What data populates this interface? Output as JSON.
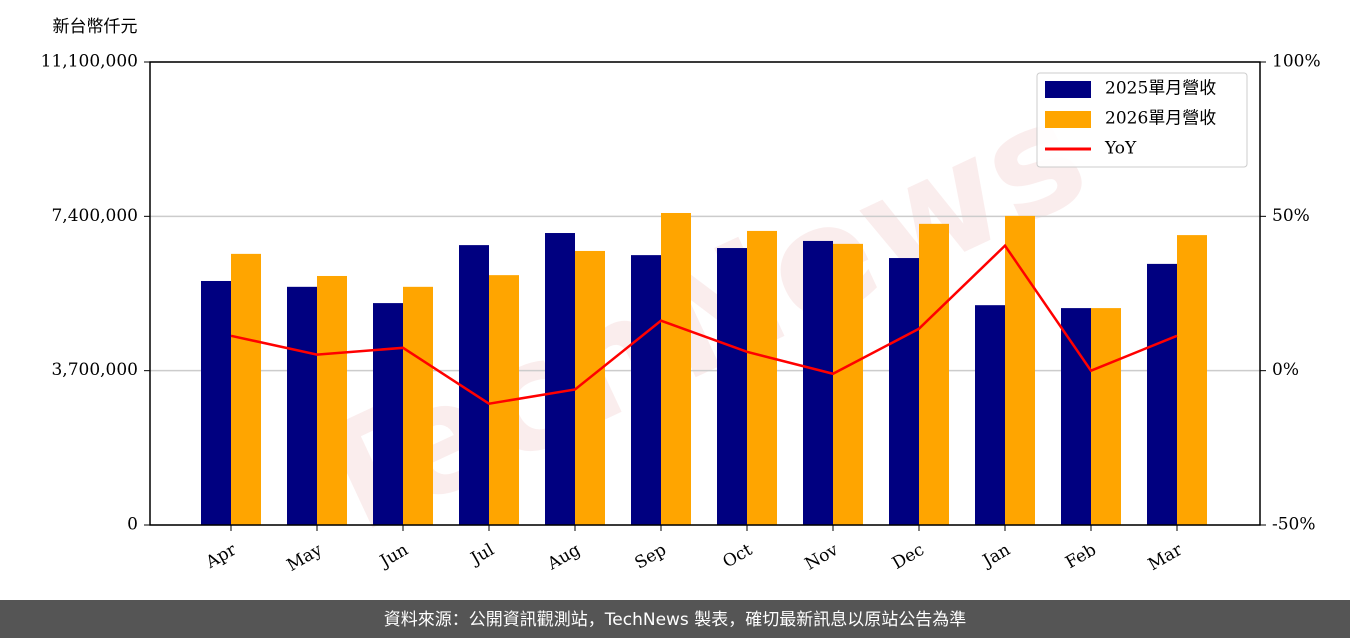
{
  "chart_data": {
    "type": "bar_line",
    "y_label": "新台幣仟元",
    "watermark": "TechNews",
    "source": "資料來源：公開資訊觀測站，TechNews 製表，確切最新訊息以原站公告為準",
    "categories": [
      "Apr",
      "May",
      "Jun",
      "Jul",
      "Aug",
      "Sep",
      "Oct",
      "Nov",
      "Dec",
      "Jan",
      "Feb",
      "Mar"
    ],
    "series": [
      {
        "name": "2025單月營收",
        "color": "#000080",
        "type": "bar",
        "axis": "y",
        "values": [
          5850000,
          5710000,
          5320000,
          6710000,
          7000000,
          6470000,
          6640000,
          6810000,
          6400000,
          5270000,
          5200000,
          6260000
        ]
      },
      {
        "name": "2026單月營收",
        "color": "#ffa500",
        "type": "bar",
        "axis": "y",
        "values": [
          6500000,
          5970000,
          5710000,
          5990000,
          6570000,
          7480000,
          7050000,
          6740000,
          7220000,
          7410000,
          5200000,
          6950000
        ]
      },
      {
        "name": "YoY",
        "color": "#ff0000",
        "type": "line",
        "axis": "y2",
        "values": [
          11.3,
          5.2,
          7.4,
          -10.7,
          -6.1,
          16.2,
          6.1,
          -1.0,
          13.6,
          40.5,
          0.0,
          11.3
        ]
      }
    ],
    "ylim": [
      0,
      11100000
    ],
    "yticks": [
      {
        "value": 0,
        "label": "0"
      },
      {
        "value": 3700000,
        "label": "3,700,000"
      },
      {
        "value": 7400000,
        "label": "7,400,000"
      },
      {
        "value": 11100000,
        "label": "11,100,000"
      }
    ],
    "y2lim": [
      -50,
      100
    ],
    "y2ticks": [
      {
        "value": -50,
        "label": "-50%"
      },
      {
        "value": 0,
        "label": "0%"
      },
      {
        "value": 50,
        "label": "50%"
      },
      {
        "value": 100,
        "label": "100%"
      }
    ],
    "grid": true,
    "legend": "upper right"
  }
}
